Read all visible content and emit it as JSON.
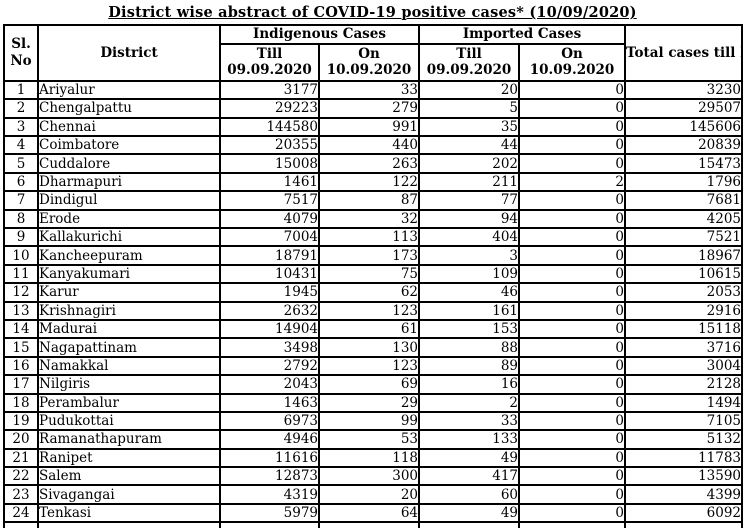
{
  "title": "District wise abstract of COVID-19 positive cases* (10/09/2020)",
  "table": {
    "header": {
      "sl_no_line1": "Sl.",
      "sl_no_line2": "No",
      "district": "District",
      "indigenous_group": "Indigenous Cases",
      "imported_group": "Imported Cases",
      "till_line1": "Till",
      "till_line2": "09.09.2020",
      "on_line1": "On",
      "on_line2": "10.09.2020",
      "total": "Total cases till Date"
    },
    "rows": [
      {
        "no": "1",
        "district": "Ariyalur",
        "ind_till": "3177",
        "ind_on": "33",
        "imp_till": "20",
        "imp_on": "0",
        "total": "3230"
      },
      {
        "no": "2",
        "district": "Chengalpattu",
        "ind_till": "29223",
        "ind_on": "279",
        "imp_till": "5",
        "imp_on": "0",
        "total": "29507"
      },
      {
        "no": "3",
        "district": "Chennai",
        "ind_till": "144580",
        "ind_on": "991",
        "imp_till": "35",
        "imp_on": "0",
        "total": "145606"
      },
      {
        "no": "4",
        "district": "Coimbatore",
        "ind_till": "20355",
        "ind_on": "440",
        "imp_till": "44",
        "imp_on": "0",
        "total": "20839"
      },
      {
        "no": "5",
        "district": "Cuddalore",
        "ind_till": "15008",
        "ind_on": "263",
        "imp_till": "202",
        "imp_on": "0",
        "total": "15473"
      },
      {
        "no": "6",
        "district": "Dharmapuri",
        "ind_till": "1461",
        "ind_on": "122",
        "imp_till": "211",
        "imp_on": "2",
        "total": "1796"
      },
      {
        "no": "7",
        "district": "Dindigul",
        "ind_till": "7517",
        "ind_on": "87",
        "imp_till": "77",
        "imp_on": "0",
        "total": "7681"
      },
      {
        "no": "8",
        "district": "Erode",
        "ind_till": "4079",
        "ind_on": "32",
        "imp_till": "94",
        "imp_on": "0",
        "total": "4205"
      },
      {
        "no": "9",
        "district": "Kallakurichi",
        "ind_till": "7004",
        "ind_on": "113",
        "imp_till": "404",
        "imp_on": "0",
        "total": "7521"
      },
      {
        "no": "10",
        "district": "Kancheepuram",
        "ind_till": "18791",
        "ind_on": "173",
        "imp_till": "3",
        "imp_on": "0",
        "total": "18967"
      },
      {
        "no": "11",
        "district": "Kanyakumari",
        "ind_till": "10431",
        "ind_on": "75",
        "imp_till": "109",
        "imp_on": "0",
        "total": "10615"
      },
      {
        "no": "12",
        "district": "Karur",
        "ind_till": "1945",
        "ind_on": "62",
        "imp_till": "46",
        "imp_on": "0",
        "total": "2053"
      },
      {
        "no": "13",
        "district": "Krishnagiri",
        "ind_till": "2632",
        "ind_on": "123",
        "imp_till": "161",
        "imp_on": "0",
        "total": "2916"
      },
      {
        "no": "14",
        "district": "Madurai",
        "ind_till": "14904",
        "ind_on": "61",
        "imp_till": "153",
        "imp_on": "0",
        "total": "15118"
      },
      {
        "no": "15",
        "district": "Nagapattinam",
        "ind_till": "3498",
        "ind_on": "130",
        "imp_till": "88",
        "imp_on": "0",
        "total": "3716"
      },
      {
        "no": "16",
        "district": "Namakkal",
        "ind_till": "2792",
        "ind_on": "123",
        "imp_till": "89",
        "imp_on": "0",
        "total": "3004"
      },
      {
        "no": "17",
        "district": "Nilgiris",
        "ind_till": "2043",
        "ind_on": "69",
        "imp_till": "16",
        "imp_on": "0",
        "total": "2128"
      },
      {
        "no": "18",
        "district": "Perambalur",
        "ind_till": "1463",
        "ind_on": "29",
        "imp_till": "2",
        "imp_on": "0",
        "total": "1494"
      },
      {
        "no": "19",
        "district": "Pudukottai",
        "ind_till": "6973",
        "ind_on": "99",
        "imp_till": "33",
        "imp_on": "0",
        "total": "7105"
      },
      {
        "no": "20",
        "district": "Ramanathapuram",
        "ind_till": "4946",
        "ind_on": "53",
        "imp_till": "133",
        "imp_on": "0",
        "total": "5132"
      },
      {
        "no": "21",
        "district": "Ranipet",
        "ind_till": "11616",
        "ind_on": "118",
        "imp_till": "49",
        "imp_on": "0",
        "total": "11783"
      },
      {
        "no": "22",
        "district": "Salem",
        "ind_till": "12873",
        "ind_on": "300",
        "imp_till": "417",
        "imp_on": "0",
        "total": "13590"
      },
      {
        "no": "23",
        "district": "Sivagangai",
        "ind_till": "4319",
        "ind_on": "20",
        "imp_till": "60",
        "imp_on": "0",
        "total": "4399"
      },
      {
        "no": "24",
        "district": "Tenkasi",
        "ind_till": "5979",
        "ind_on": "64",
        "imp_till": "49",
        "imp_on": "0",
        "total": "6092"
      }
    ]
  }
}
